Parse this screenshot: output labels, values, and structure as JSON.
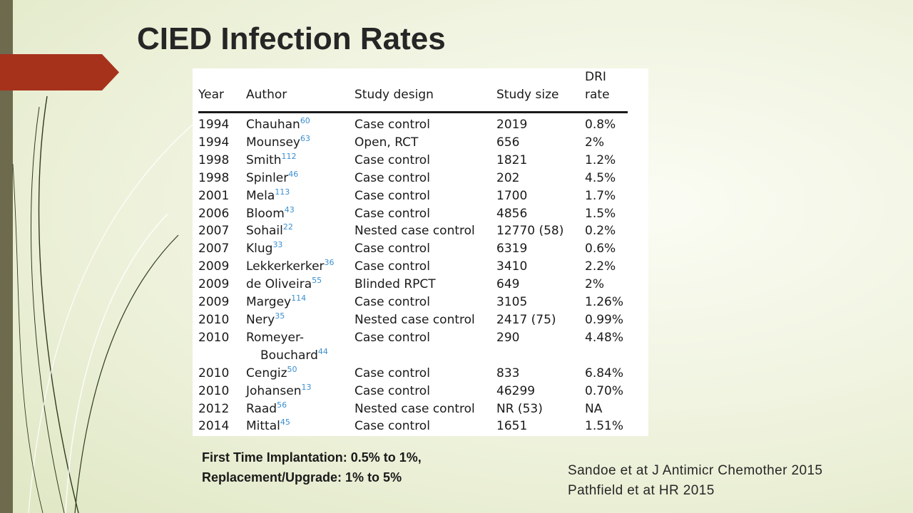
{
  "title": "CIED Infection Rates",
  "colors": {
    "accent": "#a6321c",
    "sidebar": "#6e6a4e",
    "reference_superscript": "#3a8fd0"
  },
  "table": {
    "headers": {
      "year": "Year",
      "author": "Author",
      "design": "Study design",
      "size": "Study size",
      "rate_line1": "DRI",
      "rate_line2": "rate"
    },
    "rows": [
      {
        "year": "1994",
        "author": "Chauhan",
        "ref": "60",
        "design": "Case control",
        "size": "2019",
        "rate": "0.8%"
      },
      {
        "year": "1994",
        "author": "Mounsey",
        "ref": "63",
        "design": "Open, RCT",
        "size": "656",
        "rate": "2%"
      },
      {
        "year": "1998",
        "author": "Smith",
        "ref": "112",
        "design": "Case control",
        "size": "1821",
        "rate": "1.2%"
      },
      {
        "year": "1998",
        "author": "Spinler",
        "ref": "46",
        "design": "Case control",
        "size": "202",
        "rate": "4.5%"
      },
      {
        "year": "2001",
        "author": "Mela",
        "ref": "113",
        "design": "Case control",
        "size": "1700",
        "rate": "1.7%"
      },
      {
        "year": "2006",
        "author": "Bloom",
        "ref": "43",
        "design": "Case control",
        "size": "4856",
        "rate": "1.5%"
      },
      {
        "year": "2007",
        "author": "Sohail",
        "ref": "22",
        "design": "Nested case control",
        "size": "12770 (58)",
        "rate": "0.2%"
      },
      {
        "year": "2007",
        "author": "Klug",
        "ref": "33",
        "design": "Case control",
        "size": "6319",
        "rate": "0.6%"
      },
      {
        "year": "2009",
        "author": "Lekkerkerker",
        "ref": "36",
        "design": "Case control",
        "size": "3410",
        "rate": "2.2%"
      },
      {
        "year": "2009",
        "author": "de Oliveira",
        "ref": "55",
        "design": "Blinded RPCT",
        "size": "649",
        "rate": "2%"
      },
      {
        "year": "2009",
        "author": "Margey",
        "ref": "114",
        "design": "Case control",
        "size": "3105",
        "rate": "1.26%"
      },
      {
        "year": "2010",
        "author": "Nery",
        "ref": "35",
        "design": "Nested case control",
        "size": "2417 (75)",
        "rate": "0.99%"
      },
      {
        "year": "2010",
        "author": "Romeyer-",
        "author2": "Bouchard",
        "ref": "44",
        "design": "Case control",
        "size": "290",
        "rate": "4.48%"
      },
      {
        "year": "2010",
        "author": "Cengiz",
        "ref": "50",
        "design": "Case control",
        "size": "833",
        "rate": "6.84%"
      },
      {
        "year": "2010",
        "author": "Johansen",
        "ref": "13",
        "design": "Case control",
        "size": "46299",
        "rate": "0.70%"
      },
      {
        "year": "2012",
        "author": "Raad",
        "ref": "56",
        "design": "Nested case control",
        "size": "NR (53)",
        "rate": "NA"
      },
      {
        "year": "2014",
        "author": "Mittal",
        "ref": "45",
        "design": "Case control",
        "size": "1651",
        "rate": "1.51%"
      }
    ]
  },
  "summary": {
    "line1": "First Time Implantation:  0.5% to 1%,",
    "line2": "Replacement/Upgrade: 1% to 5%"
  },
  "citations": {
    "line1": "Sandoe et at J Antimicr Chemother 2015",
    "line2": "Pathfield et at HR 2015"
  }
}
